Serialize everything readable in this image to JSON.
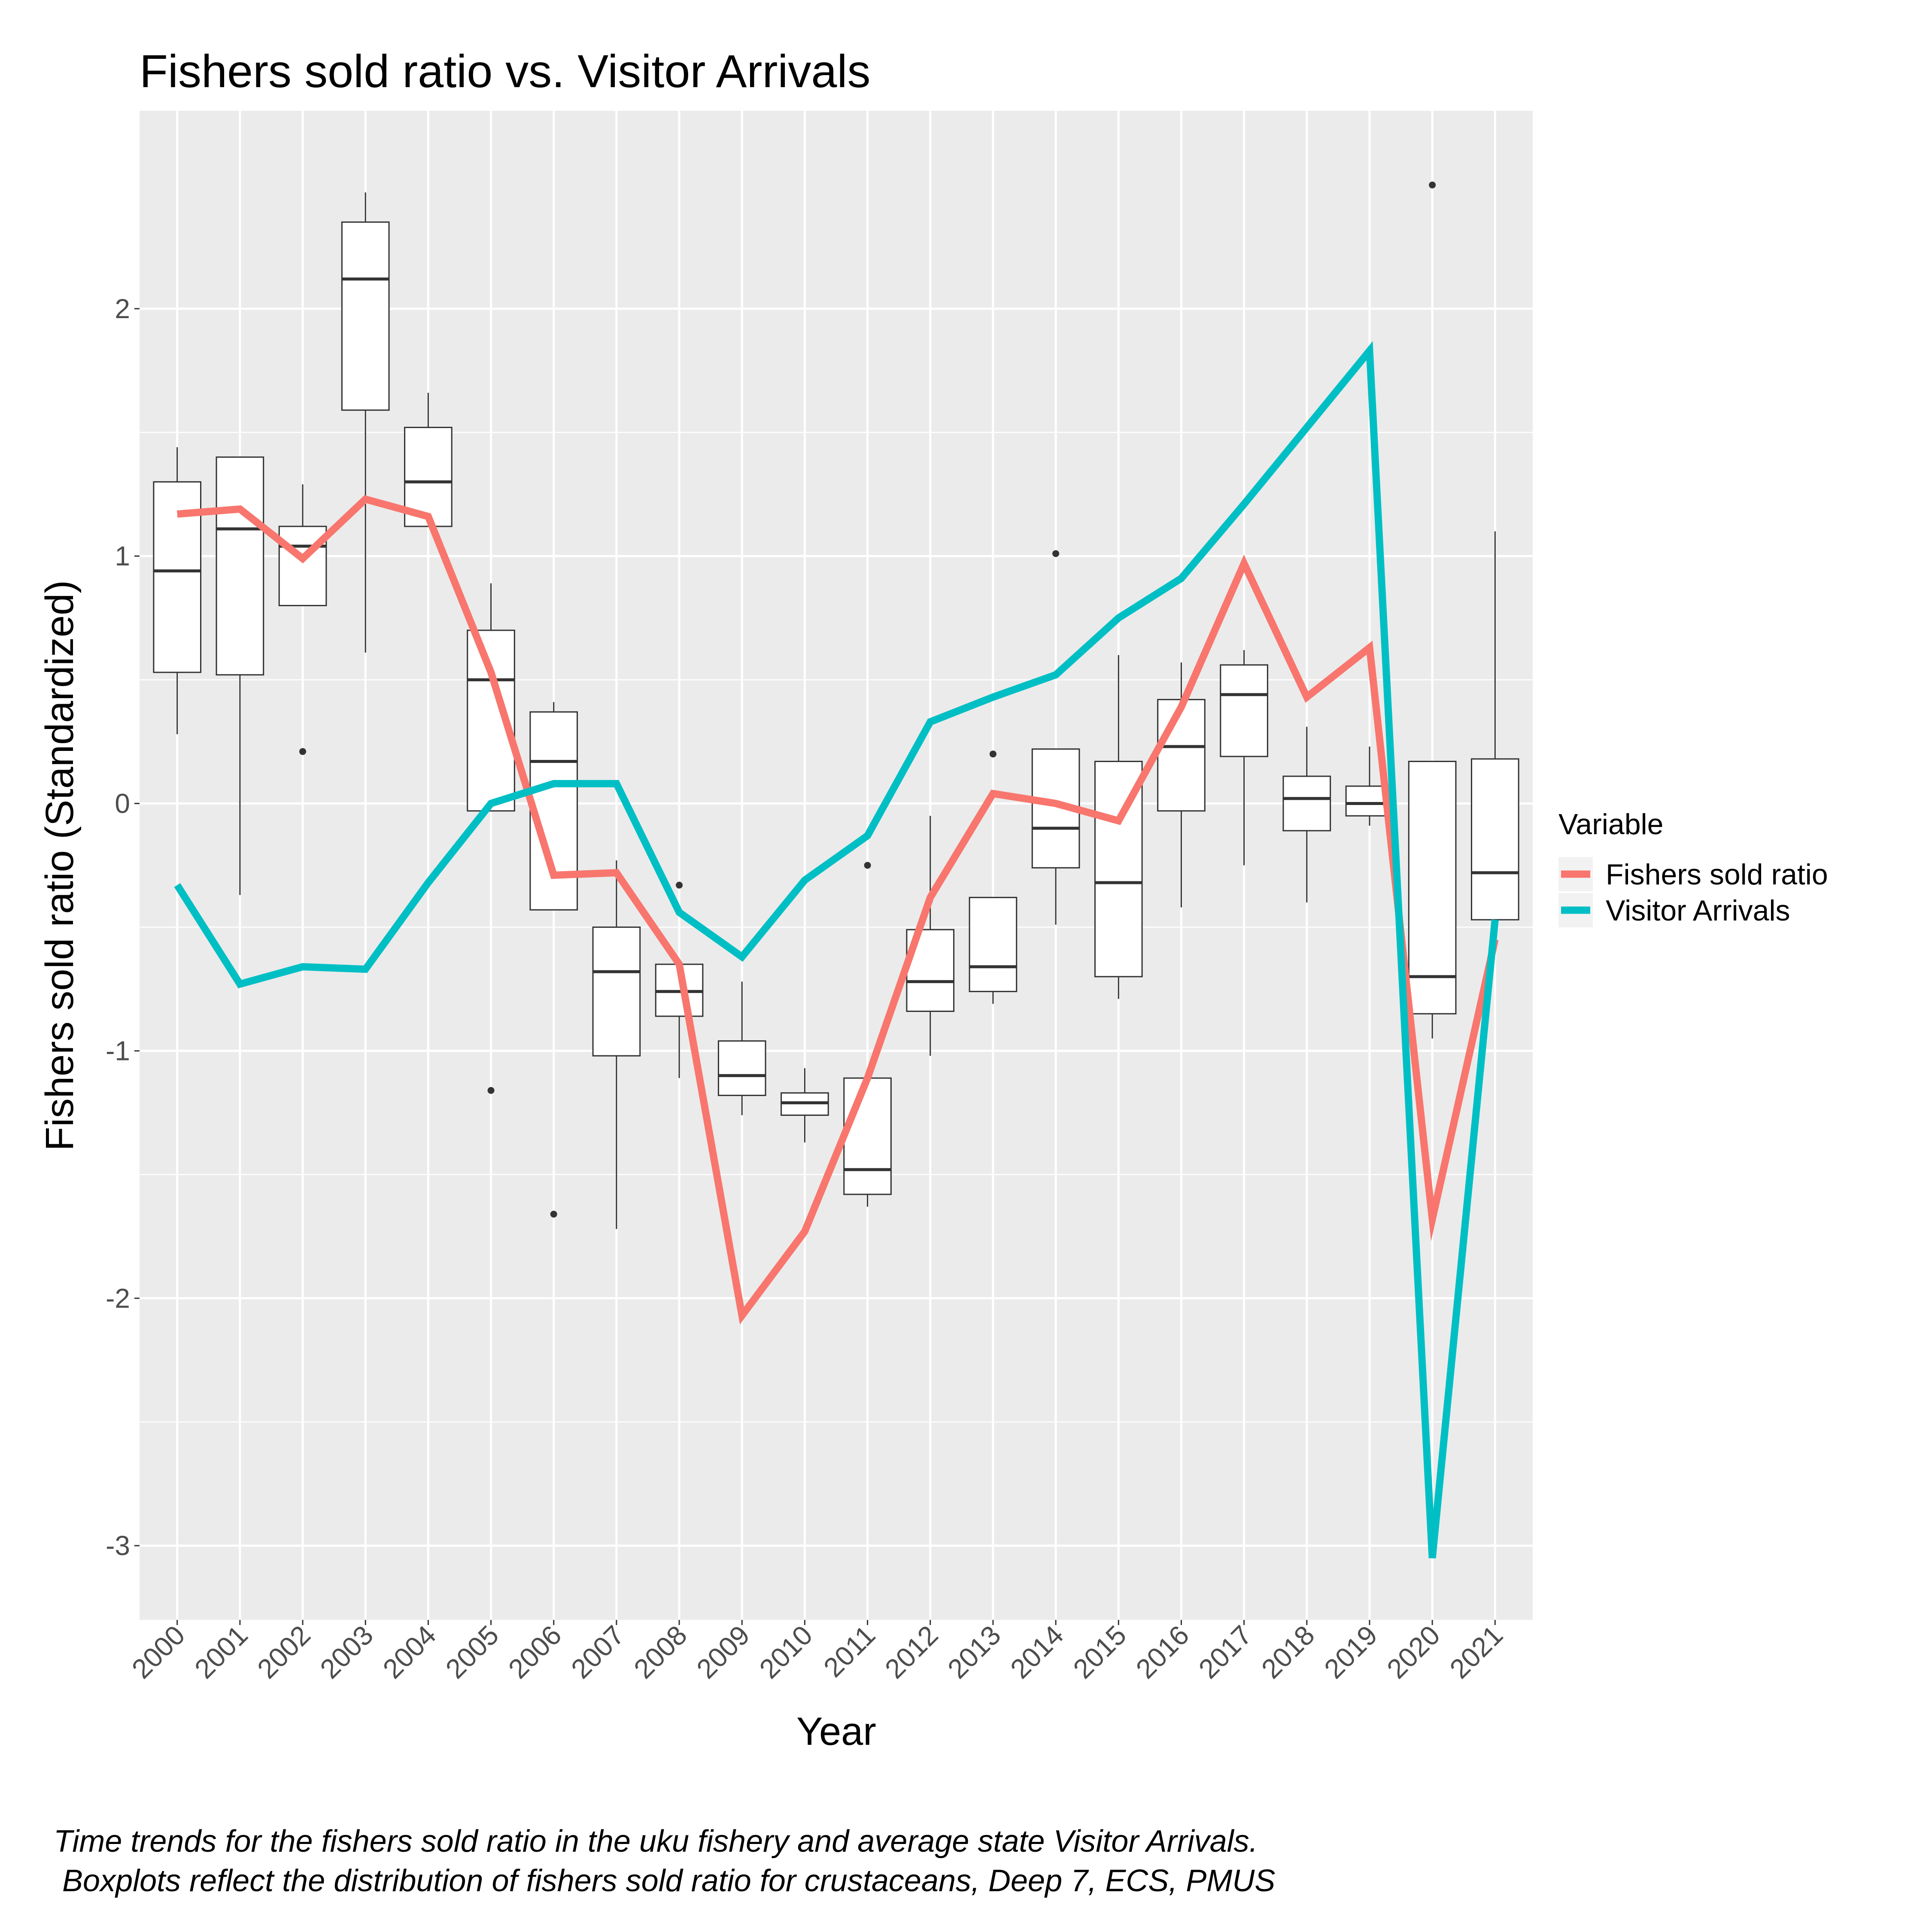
{
  "chart_data": {
    "type": "line",
    "title": "Fishers sold ratio vs. Visitor Arrivals",
    "xlabel": "Year",
    "ylabel": "Fishers sold ratio (Standardized)",
    "ylim": [
      -3.3,
      2.8
    ],
    "yticks": [
      2,
      1,
      0,
      -1,
      -2,
      -3
    ],
    "grid": true,
    "legend_position": "right",
    "legend_title": "Variable",
    "categories": [
      "2000",
      "2001",
      "2002",
      "2003",
      "2004",
      "2005",
      "2006",
      "2007",
      "2008",
      "2009",
      "2010",
      "2011",
      "2012",
      "2013",
      "2014",
      "2015",
      "2016",
      "2017",
      "2018",
      "2019",
      "2020",
      "2021"
    ],
    "series": [
      {
        "name": "Fishers sold ratio",
        "color": "#F8766D",
        "values": [
          1.17,
          1.19,
          0.99,
          1.23,
          1.16,
          0.53,
          -0.29,
          -0.28,
          -0.65,
          -2.07,
          -1.73,
          -1.11,
          -0.38,
          0.04,
          0.0,
          -0.07,
          0.39,
          0.97,
          0.43,
          0.63,
          -1.68,
          -0.55
        ]
      },
      {
        "name": "Visitor Arrivals",
        "color": "#00BFC4",
        "values": [
          -0.33,
          -0.73,
          -0.66,
          -0.67,
          -0.32,
          0.0,
          0.08,
          0.08,
          -0.44,
          -0.62,
          -0.31,
          -0.13,
          0.33,
          0.43,
          0.52,
          0.75,
          0.91,
          1.21,
          1.52,
          1.83,
          -3.05,
          -0.47
        ]
      }
    ],
    "boxplots": [
      {
        "x": "2000",
        "lower": 0.28,
        "q1": 0.53,
        "median": 0.94,
        "q3": 1.3,
        "upper": 1.44,
        "outliers": []
      },
      {
        "x": "2001",
        "lower": -0.37,
        "q1": 0.52,
        "median": 1.11,
        "q3": 1.4,
        "upper": 1.4,
        "outliers": []
      },
      {
        "x": "2002",
        "lower": 0.8,
        "q1": 0.8,
        "median": 1.04,
        "q3": 1.12,
        "upper": 1.29,
        "outliers": [
          0.21
        ]
      },
      {
        "x": "2003",
        "lower": 0.61,
        "q1": 1.59,
        "median": 2.12,
        "q3": 2.35,
        "upper": 2.47,
        "outliers": []
      },
      {
        "x": "2004",
        "lower": 1.12,
        "q1": 1.12,
        "median": 1.3,
        "q3": 1.52,
        "upper": 1.66,
        "outliers": []
      },
      {
        "x": "2005",
        "lower": -0.03,
        "q1": -0.03,
        "median": 0.5,
        "q3": 0.7,
        "upper": 0.89,
        "outliers": [
          -1.16
        ]
      },
      {
        "x": "2006",
        "lower": -0.43,
        "q1": -0.43,
        "median": 0.17,
        "q3": 0.37,
        "upper": 0.41,
        "outliers": [
          -1.66
        ]
      },
      {
        "x": "2007",
        "lower": -1.72,
        "q1": -1.02,
        "median": -0.68,
        "q3": -0.5,
        "upper": -0.23,
        "outliers": []
      },
      {
        "x": "2008",
        "lower": -1.11,
        "q1": -0.86,
        "median": -0.76,
        "q3": -0.65,
        "upper": -0.65,
        "outliers": [
          -0.33
        ]
      },
      {
        "x": "2009",
        "lower": -1.26,
        "q1": -1.18,
        "median": -1.1,
        "q3": -0.96,
        "upper": -0.72,
        "outliers": []
      },
      {
        "x": "2010",
        "lower": -1.37,
        "q1": -1.26,
        "median": -1.21,
        "q3": -1.17,
        "upper": -1.07,
        "outliers": []
      },
      {
        "x": "2011",
        "lower": -1.63,
        "q1": -1.58,
        "median": -1.48,
        "q3": -1.11,
        "upper": -1.11,
        "outliers": [
          -0.25
        ]
      },
      {
        "x": "2012",
        "lower": -1.02,
        "q1": -0.84,
        "median": -0.72,
        "q3": -0.51,
        "upper": -0.05,
        "outliers": []
      },
      {
        "x": "2013",
        "lower": -0.81,
        "q1": -0.76,
        "median": -0.66,
        "q3": -0.38,
        "upper": -0.38,
        "outliers": [
          0.2
        ]
      },
      {
        "x": "2014",
        "lower": -0.49,
        "q1": -0.26,
        "median": -0.1,
        "q3": 0.22,
        "upper": 0.22,
        "outliers": [
          1.01
        ]
      },
      {
        "x": "2015",
        "lower": -0.79,
        "q1": -0.7,
        "median": -0.32,
        "q3": 0.17,
        "upper": 0.6,
        "outliers": []
      },
      {
        "x": "2016",
        "lower": -0.42,
        "q1": -0.03,
        "median": 0.23,
        "q3": 0.42,
        "upper": 0.57,
        "outliers": []
      },
      {
        "x": "2017",
        "lower": -0.25,
        "q1": 0.19,
        "median": 0.44,
        "q3": 0.56,
        "upper": 0.62,
        "outliers": []
      },
      {
        "x": "2018",
        "lower": -0.4,
        "q1": -0.11,
        "median": 0.02,
        "q3": 0.11,
        "upper": 0.31,
        "outliers": []
      },
      {
        "x": "2019",
        "lower": -0.09,
        "q1": -0.05,
        "median": 0.0,
        "q3": 0.07,
        "upper": 0.23,
        "outliers": []
      },
      {
        "x": "2020",
        "lower": -0.95,
        "q1": -0.85,
        "median": -0.7,
        "q3": 0.17,
        "upper": 0.17,
        "outliers": [
          2.5
        ]
      },
      {
        "x": "2021",
        "lower": -0.47,
        "q1": -0.47,
        "median": -0.28,
        "q3": 0.18,
        "upper": 1.1,
        "outliers": []
      }
    ],
    "caption_lines": [
      "Time trends for the fishers sold ratio in the uku fishery and average state Visitor Arrivals.",
      " Boxplots reflect the distribution of fishers sold ratio for crustaceans, Deep 7, ECS, PMUS"
    ]
  }
}
